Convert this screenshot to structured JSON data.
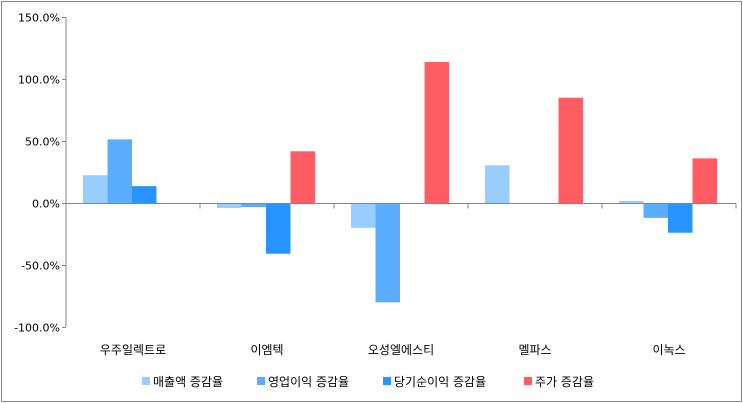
{
  "chart_data": {
    "type": "bar",
    "title": "",
    "xlabel": "",
    "ylabel": "",
    "categories": [
      "우주일렉트로",
      "이엠텍",
      "오성엘에스티",
      "멜파스",
      "이녹스"
    ],
    "series": [
      {
        "name": "매출액 증감율",
        "color": "#99CCFF",
        "values": [
          22.4,
          -4.0,
          -20.0,
          30.4,
          1.6
        ]
      },
      {
        "name": "영업이익 증감율",
        "color": "#5BADFF",
        "values": [
          51.3,
          -3.2,
          -80.1,
          0,
          -12.0
        ]
      },
      {
        "name": "당기순이익 증감율",
        "color": "#2894FF",
        "values": [
          13.6,
          -40.9,
          0,
          0,
          -24.0
        ]
      },
      {
        "name": "주가 증감율",
        "color": "#FF5C64",
        "values": [
          0,
          41.7,
          113.7,
          84.9,
          36.0
        ]
      }
    ],
    "ylim": [
      -100,
      150
    ],
    "yticks": [
      -100,
      -50,
      0,
      50,
      100,
      150
    ],
    "ytick_labels": [
      "-100.0%",
      "-50.0%",
      "0.0%",
      "50.0%",
      "100.0%",
      "150.0%"
    ],
    "grid": false,
    "legend_position": "bottom"
  }
}
